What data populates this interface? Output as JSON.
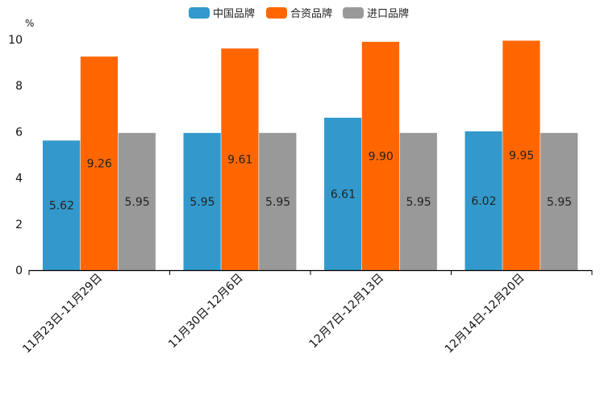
{
  "chart_data": {
    "type": "bar",
    "unit": "%",
    "categories": [
      "11月23日-11月29日",
      "11月30日-12月6日",
      "12月7日-12月13日",
      "12月14日-12月20日"
    ],
    "series": [
      {
        "name": "中国品牌",
        "color": "#3399cc",
        "values": [
          5.62,
          5.95,
          6.61,
          6.02
        ],
        "labels": [
          "5.62",
          "5.95",
          "6.61",
          "6.02"
        ]
      },
      {
        "name": "合资品牌",
        "color": "#ff6600",
        "values": [
          9.26,
          9.61,
          9.9,
          9.95
        ],
        "labels": [
          "9.26",
          "9.61",
          "9.90",
          "9.95"
        ]
      },
      {
        "name": "进口品牌",
        "color": "#999999",
        "values": [
          5.95,
          5.95,
          5.95,
          5.95
        ],
        "labels": [
          "5.95",
          "5.95",
          "5.95",
          "5.95"
        ]
      }
    ],
    "ylim": [
      0,
      10
    ],
    "yticks": [
      "0",
      "2",
      "4",
      "6",
      "8",
      "10"
    ],
    "legend_position": "top-center",
    "grid": false
  }
}
